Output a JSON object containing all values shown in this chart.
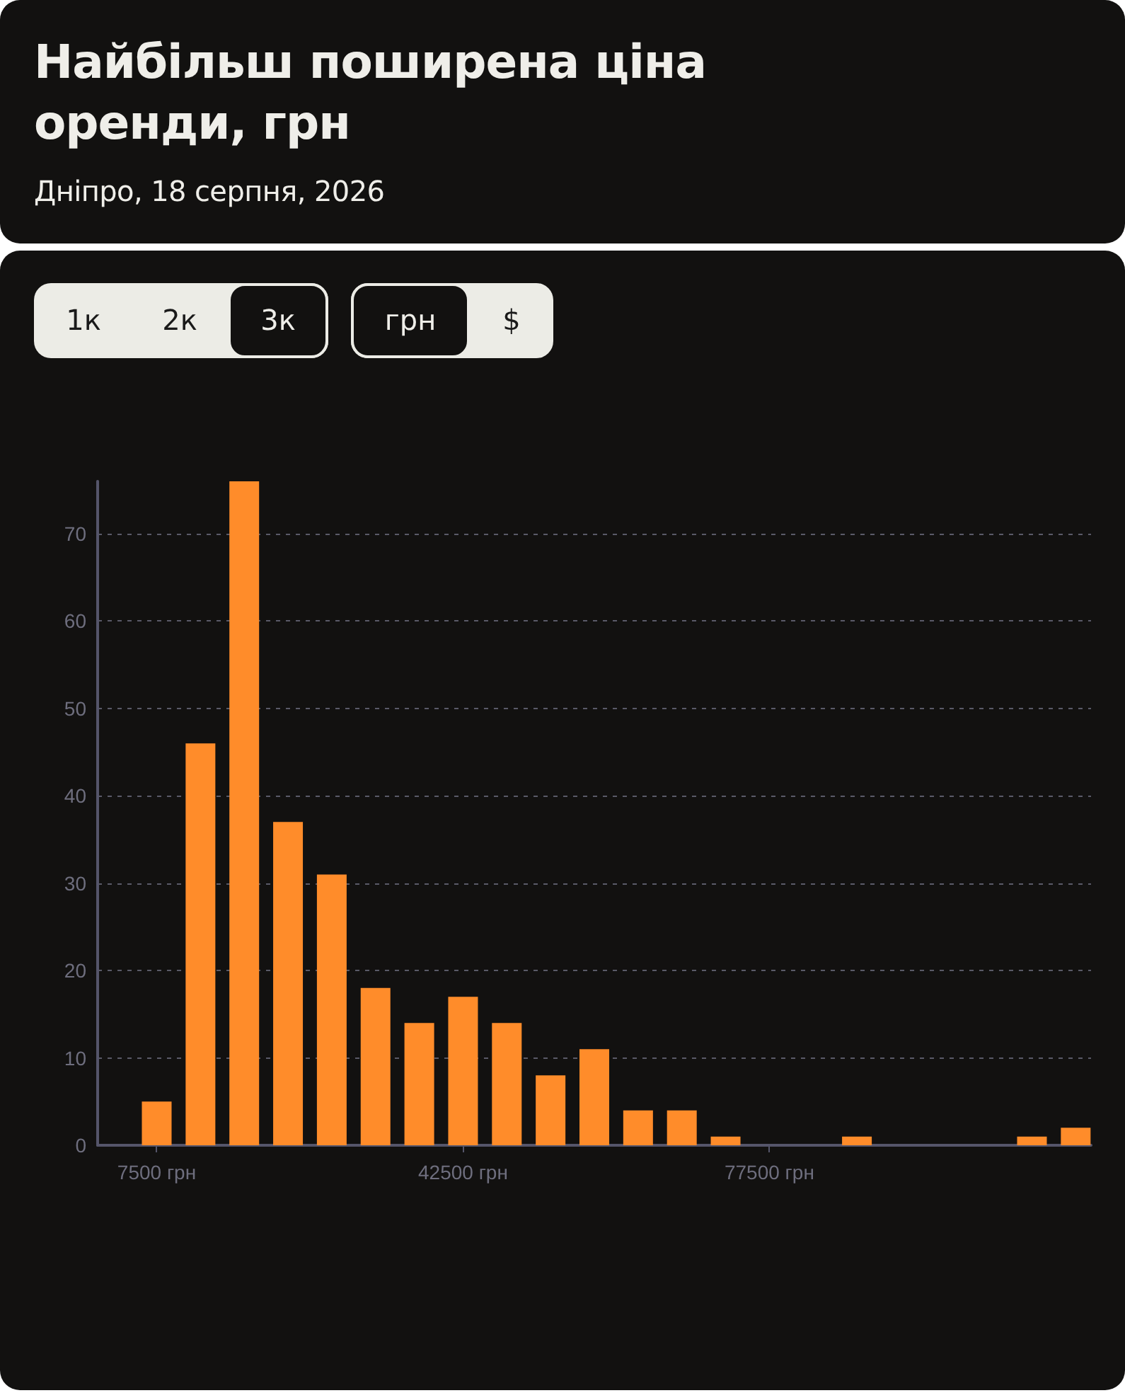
{
  "chart_data": {
    "type": "bar",
    "title": "Найбільш поширена ціна оренди, грн",
    "subtitle": "Дніпро, 18 серпня, 2026",
    "annotations": [
      "1к",
      "2к",
      "3к",
      "грн",
      "$"
    ],
    "x": [
      7500,
      12500,
      17500,
      22500,
      27500,
      32500,
      37500,
      42500,
      47500,
      52500,
      57500,
      62500,
      67500,
      72500,
      77500,
      82500,
      87500,
      92500,
      97500,
      102500,
      107500,
      112500
    ],
    "values": [
      5,
      46,
      76,
      37,
      31,
      18,
      14,
      17,
      14,
      8,
      11,
      4,
      4,
      1,
      0,
      0,
      1,
      0,
      0,
      0,
      1,
      2
    ],
    "color": "#ff8c2a",
    "xlim": [
      750,
      114250
    ],
    "xticks": [
      {
        "value": 7500,
        "label": "7500 грн"
      },
      {
        "value": 42500,
        "label": "42500 грн"
      },
      {
        "value": 77500,
        "label": "77500 грн"
      }
    ],
    "ylim": [
      0,
      76
    ],
    "yticks": [
      0,
      10,
      20,
      30,
      40,
      50,
      60,
      70
    ],
    "grid": "y"
  }
}
